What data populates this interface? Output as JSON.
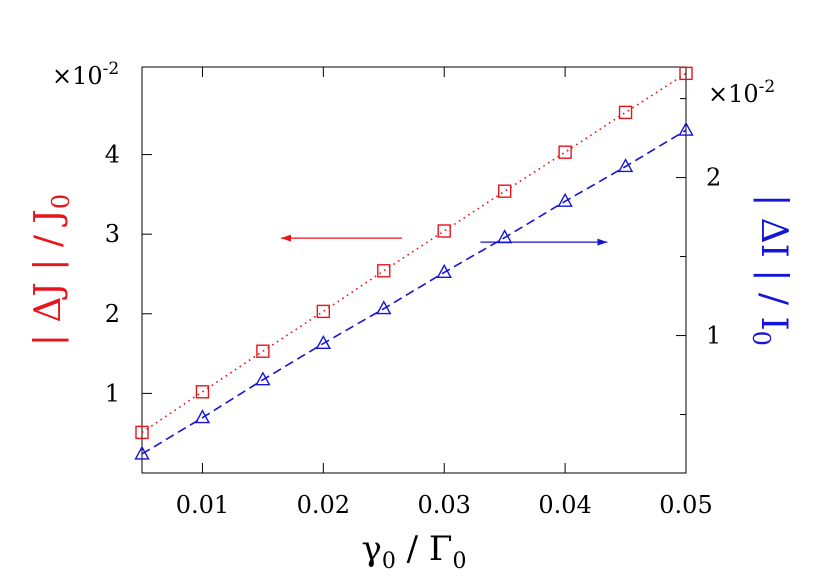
{
  "chart_data": {
    "type": "line",
    "x": [
      0.005,
      0.01,
      0.015,
      0.02,
      0.025,
      0.03,
      0.035,
      0.04,
      0.045,
      0.05
    ],
    "xlim": [
      0.005,
      0.05
    ],
    "x_ticks": [
      "0.01",
      "0.02",
      "0.03",
      "0.04",
      "0.05"
    ],
    "x_tick_values": [
      0.01,
      0.02,
      0.03,
      0.04,
      0.05
    ],
    "xlabel": {
      "main": "γ",
      "sub1": "0",
      "mid": " / Γ",
      "sub2": "0"
    },
    "y_left": {
      "label": {
        "main": "| ΔJ | / J",
        "sub": "0"
      },
      "color": "#e8141b",
      "ylim": [
        0,
        5.1
      ],
      "ticks": [
        "1",
        "2",
        "3",
        "4"
      ],
      "tick_values": [
        1,
        2,
        3,
        4
      ],
      "multiplier": {
        "base": "×10",
        "exp": "-2"
      }
    },
    "y_right": {
      "label": {
        "main": "| ΔI | / I",
        "sub": "0"
      },
      "color": "#1515d6",
      "ylim": [
        0.13,
        2.7
      ],
      "ticks": [
        "1",
        "2"
      ],
      "tick_values": [
        1,
        2
      ],
      "minor_tick_values": [
        0.5,
        1.5,
        2.5
      ],
      "multiplier": {
        "base": "×10",
        "exp": "-2"
      }
    },
    "series": [
      {
        "axis": "left",
        "marker": "square",
        "line": "dotted",
        "color": "#e8141b",
        "values": [
          0.51,
          1.02,
          1.53,
          2.03,
          2.54,
          3.04,
          3.54,
          4.03,
          4.53,
          5.02
        ]
      },
      {
        "axis": "right",
        "marker": "triangle",
        "line": "dashed",
        "color": "#1515d6",
        "values": [
          0.25,
          0.48,
          0.72,
          0.95,
          1.17,
          1.4,
          1.62,
          1.85,
          2.07,
          2.3
        ]
      }
    ],
    "arrows": [
      {
        "direction": "left",
        "color": "#e8141b",
        "x_from": 0.0265,
        "x_to": 0.0165,
        "y_left": 2.95
      },
      {
        "direction": "right",
        "color": "#1515d6",
        "x_from": 0.033,
        "x_to": 0.0435,
        "y_left": 2.9
      }
    ],
    "grid": false,
    "legend": "none"
  }
}
